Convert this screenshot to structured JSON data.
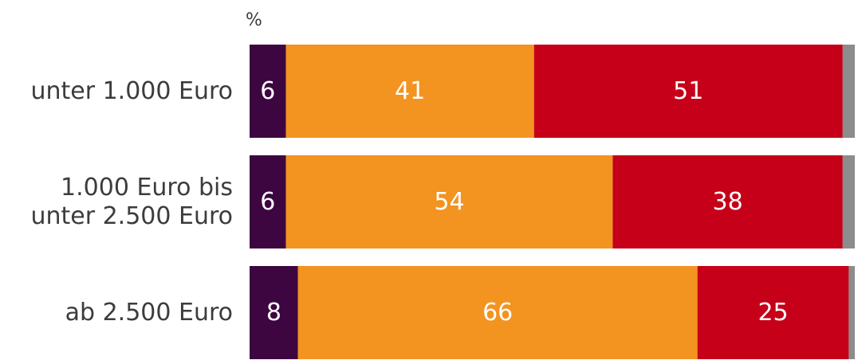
{
  "chart_data": {
    "type": "bar",
    "orientation": "horizontal",
    "stacked": true,
    "unit_label": "%",
    "categories": [
      [
        "unter 1.000 Euro"
      ],
      [
        "1.000 Euro bis",
        "unter 2.500 Euro"
      ],
      [
        "ab 2.500 Euro"
      ]
    ],
    "series": [
      {
        "color": "#3d0640",
        "values": [
          6,
          6,
          8
        ]
      },
      {
        "color": "#f39320",
        "values": [
          41,
          54,
          66
        ]
      },
      {
        "color": "#c50018",
        "values": [
          51,
          38,
          25
        ]
      },
      {
        "color": "#8c8c8c",
        "values": [
          2,
          2,
          1
        ]
      }
    ],
    "value_labels_shown_for_series": [
      0,
      1,
      2
    ],
    "xlim": [
      0,
      100
    ],
    "grid": false,
    "legend": "none"
  }
}
